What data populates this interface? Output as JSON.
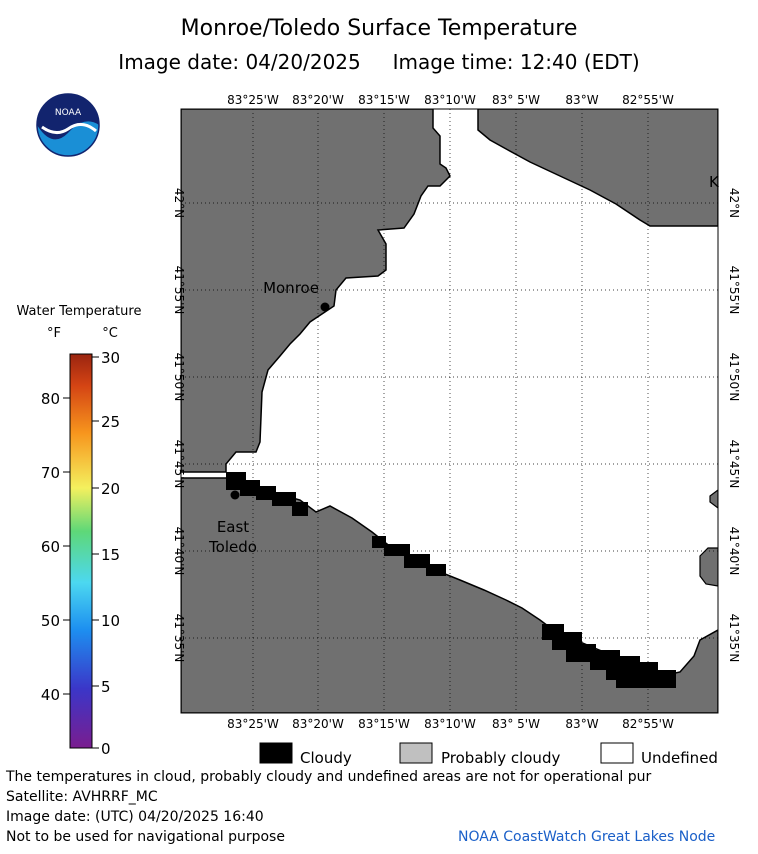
{
  "title": "Monroe/Toledo Surface Temperature",
  "subtitle_date_label": "Image date: 04/20/2025",
  "subtitle_time_label": "Image time: 12:40 (EDT)",
  "logo_text": "NOAA",
  "lon_labels": [
    "83°25'W",
    "83°20'W",
    "83°15'W",
    "83°10'W",
    "83° 5'W",
    "83°W",
    "82°55'W"
  ],
  "lat_labels": [
    "42°N",
    "41°55'N",
    "41°50'N",
    "41°45'N",
    "41°40'N",
    "41°35'N"
  ],
  "places": {
    "monroe": "Monroe",
    "east_toledo_1": "East",
    "east_toledo_2": "Toledo",
    "k": "K"
  },
  "scale": {
    "title": "Water Temperature",
    "unit_f": "°F",
    "unit_c": "°C",
    "f_ticks": [
      "80",
      "70",
      "60",
      "50",
      "40"
    ],
    "c_ticks": [
      "30",
      "25",
      "20",
      "15",
      "10",
      "5",
      "0"
    ]
  },
  "key": {
    "cloudy": "Cloudy",
    "probably_cloudy": "Probably cloudy",
    "undefined": "Undefined"
  },
  "colors": {
    "land": "#707070",
    "water": "#ffffff",
    "cloud": "#000000",
    "probably_cloudy": "#c0c0c0"
  },
  "footer": {
    "line1": "The temperatures in cloud, probably cloudy and undefined areas are not for operational pur",
    "line2": "Satellite: AVHRRF_MC",
    "line3": "Image date: (UTC) 04/20/2025  16:40",
    "line4": "Not to be used for navigational purpose",
    "credit": "NOAA CoastWatch Great Lakes Node"
  }
}
